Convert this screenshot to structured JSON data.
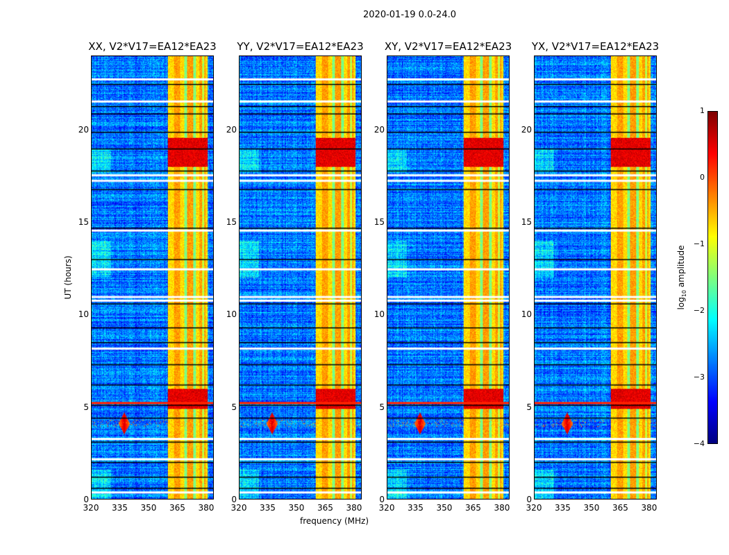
{
  "chart_data": {
    "type": "heatmap",
    "suptitle": "2020-01-19 0.0-24.0",
    "panels": [
      {
        "title": "XX, V2*V17=EA12*EA23"
      },
      {
        "title": "YY, V2*V17=EA12*EA23"
      },
      {
        "title": "XY, V2*V17=EA12*EA23"
      },
      {
        "title": "YX, V2*V17=EA12*EA23"
      }
    ],
    "xlabel": "frequency (MHz)",
    "ylabel": "UT (hours)",
    "xlim": [
      320,
      384
    ],
    "ylim": [
      0,
      24
    ],
    "xticks": [
      "320",
      "335",
      "350",
      "365",
      "380"
    ],
    "xtick_values": [
      320,
      335,
      350,
      365,
      380
    ],
    "yticks": [
      "0",
      "5",
      "10",
      "15",
      "20"
    ],
    "ytick_values": [
      0,
      5,
      10,
      15,
      20
    ],
    "colorbar": {
      "label": "log10 amplitude",
      "label_main": "log",
      "label_sub": "10",
      "label_rest": " amplitude",
      "colormap": "jet",
      "range": [
        -4,
        1
      ],
      "ticks": [
        "1",
        "0",
        "−1",
        "−2",
        "−3",
        "−4"
      ],
      "tick_values": [
        1,
        0,
        -1,
        -2,
        -3,
        -4
      ]
    },
    "features": {
      "background_level": -2.8,
      "bright_band_MHz": [
        360,
        381
      ],
      "bright_band_level": -0.6,
      "strong_hours": [
        [
          18.0,
          19.6
        ],
        [
          4.9,
          6.0
        ]
      ],
      "strong_level": 0.5,
      "rfi_burst": {
        "freq_MHz": 337,
        "hours": [
          3.5,
          4.7
        ],
        "level": 0.6
      },
      "flagged_hours_white": [
        0.4,
        2.2,
        3.3,
        8.2,
        10.8,
        11.0,
        12.5,
        14.6,
        17.3,
        17.6,
        21.6,
        22.8
      ],
      "flagged_hours_black": [
        0.6,
        1.2,
        2.0,
        3.1,
        4.4,
        5.1,
        6.2,
        7.3,
        8.5,
        9.3,
        10.6,
        13.0,
        14.7,
        16.8,
        17.8,
        19.0,
        19.9,
        20.9,
        21.3,
        22.5
      ]
    }
  }
}
